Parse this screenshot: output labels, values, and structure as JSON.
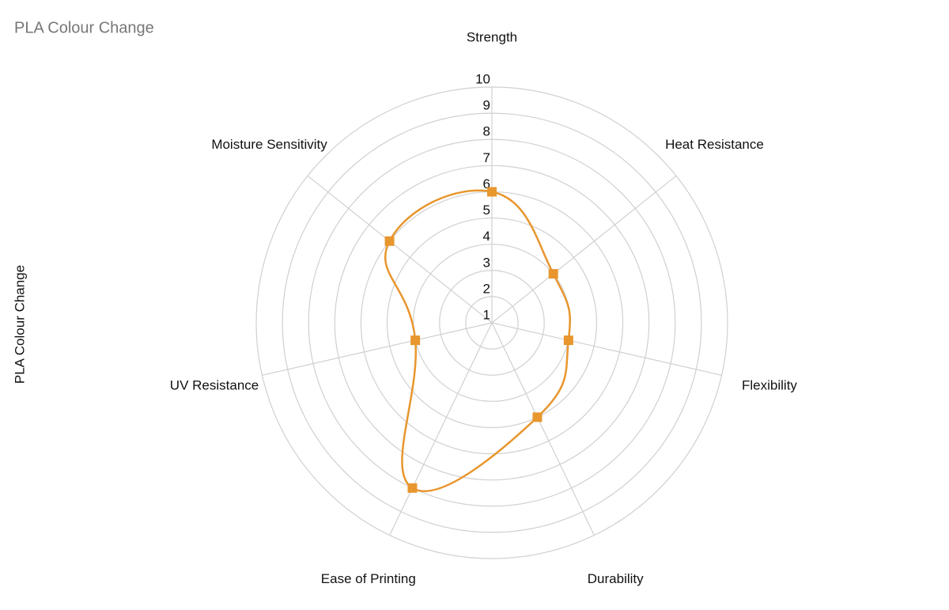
{
  "chart_data": {
    "type": "radar",
    "title": "PLA Colour Change",
    "y_label": "PLA Colour Change",
    "categories": [
      "Strength",
      "Heat Resistance",
      "Flexibility",
      "Durability",
      "Ease of Printing",
      "UV Resistance",
      "Moisture Sensitivity"
    ],
    "series": [
      {
        "color": "#e8962e",
        "values": [
          6,
          4,
          4,
          5,
          8,
          4,
          6
        ]
      }
    ],
    "rlim": [
      1,
      10
    ],
    "rticks": [
      1,
      2,
      3,
      4,
      5,
      6,
      7,
      8,
      9,
      10
    ],
    "grid": true
  }
}
